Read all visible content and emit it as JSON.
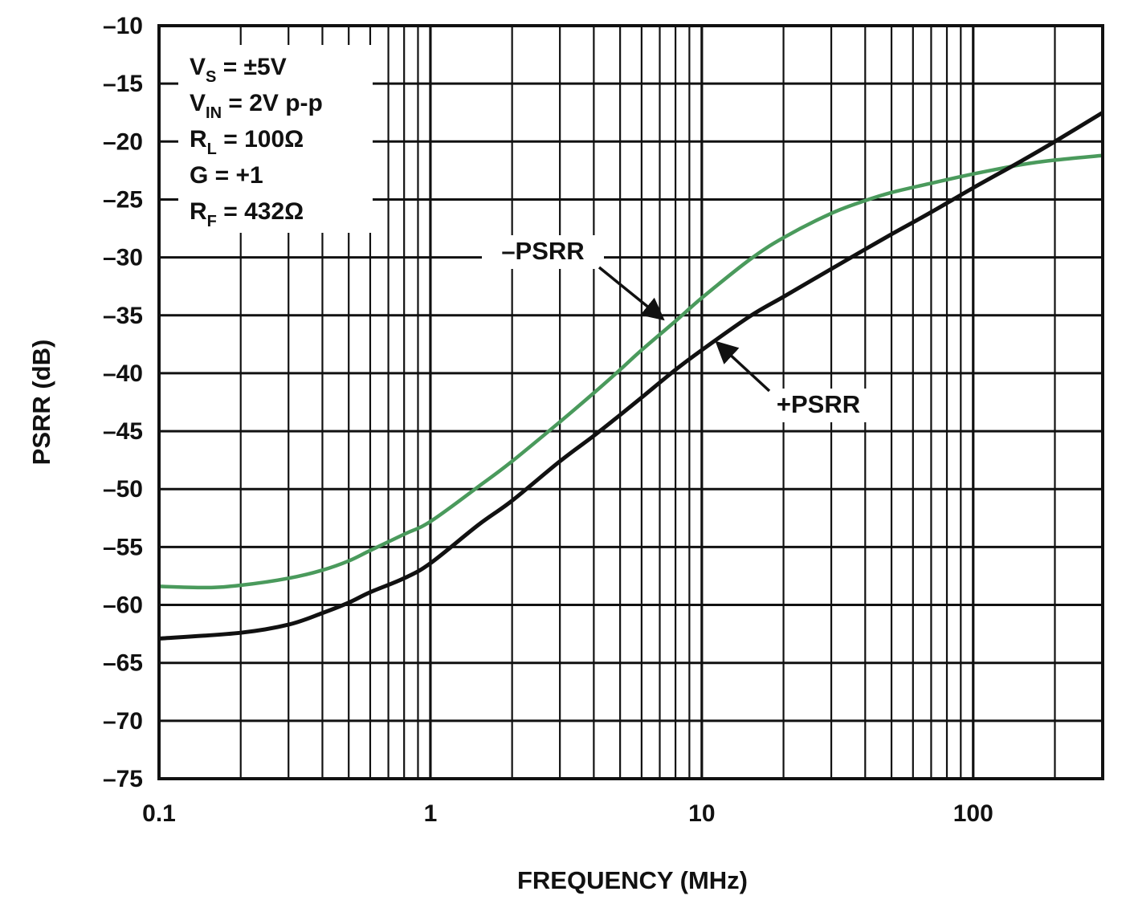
{
  "chart_data": {
    "type": "line",
    "title": "",
    "xlabel": "FREQUENCY (MHz)",
    "ylabel": "PSRR (dB)",
    "x_scale": "log",
    "xlim": [
      0.1,
      300
    ],
    "ylim": [
      -75,
      -10
    ],
    "grid": true,
    "x_ticks": [
      {
        "value": 0.1,
        "label": "0.1"
      },
      {
        "value": 1,
        "label": "1"
      },
      {
        "value": 10,
        "label": "10"
      },
      {
        "value": 100,
        "label": "100"
      }
    ],
    "y_ticks": [
      {
        "value": -10,
        "label": "–10"
      },
      {
        "value": -15,
        "label": "–15"
      },
      {
        "value": -20,
        "label": "–20"
      },
      {
        "value": -25,
        "label": "–25"
      },
      {
        "value": -30,
        "label": "–30"
      },
      {
        "value": -35,
        "label": "–35"
      },
      {
        "value": -40,
        "label": "–40"
      },
      {
        "value": -45,
        "label": "–45"
      },
      {
        "value": -50,
        "label": "–50"
      },
      {
        "value": -55,
        "label": "–55"
      },
      {
        "value": -60,
        "label": "–60"
      },
      {
        "value": -65,
        "label": "–65"
      },
      {
        "value": -70,
        "label": "–70"
      },
      {
        "value": -75,
        "label": "–75"
      }
    ],
    "conditions": [
      {
        "main": "V",
        "sub": "S",
        "rest": " = ±5V"
      },
      {
        "main": "V",
        "sub": "IN",
        "rest": " = 2V p-p"
      },
      {
        "main": "R",
        "sub": "L",
        "rest": " = 100Ω"
      },
      {
        "main": "G = +1",
        "sub": "",
        "rest": ""
      },
      {
        "main": "R",
        "sub": "F",
        "rest": " = 432Ω"
      }
    ],
    "series": [
      {
        "name": "–PSRR",
        "color": "#4a9a5c",
        "x": [
          0.1,
          0.15,
          0.2,
          0.3,
          0.4,
          0.5,
          0.6,
          0.8,
          1,
          1.5,
          2,
          3,
          4,
          5,
          6,
          8,
          10,
          15,
          20,
          30,
          40,
          50,
          70,
          100,
          150,
          200,
          300
        ],
        "y": [
          -58.4,
          -58.5,
          -58.3,
          -57.7,
          -57.0,
          -56.2,
          -55.3,
          -53.9,
          -52.8,
          -49.8,
          -47.6,
          -44.2,
          -41.7,
          -39.7,
          -38.0,
          -35.5,
          -33.5,
          -30.2,
          -28.3,
          -26.2,
          -25.1,
          -24.4,
          -23.6,
          -22.8,
          -22.0,
          -21.6,
          -21.2
        ]
      },
      {
        "name": "+PSRR",
        "color": "#111111",
        "x": [
          0.1,
          0.2,
          0.3,
          0.4,
          0.5,
          0.6,
          0.8,
          1,
          1.5,
          2,
          3,
          4,
          5,
          6,
          8,
          10,
          15,
          20,
          30,
          40,
          50,
          70,
          100,
          150,
          200,
          300
        ],
        "y": [
          -62.9,
          -62.4,
          -61.7,
          -60.7,
          -59.8,
          -58.9,
          -57.7,
          -56.4,
          -53.1,
          -51.0,
          -47.6,
          -45.4,
          -43.6,
          -42.1,
          -39.7,
          -38.0,
          -35.1,
          -33.4,
          -31.0,
          -29.3,
          -28.0,
          -26.1,
          -24.0,
          -21.7,
          -20.0,
          -17.5
        ]
      }
    ],
    "annotations": [
      {
        "text": "–PSRR",
        "series": "–PSRR"
      },
      {
        "text": "+PSRR",
        "series": "+PSRR"
      }
    ]
  }
}
